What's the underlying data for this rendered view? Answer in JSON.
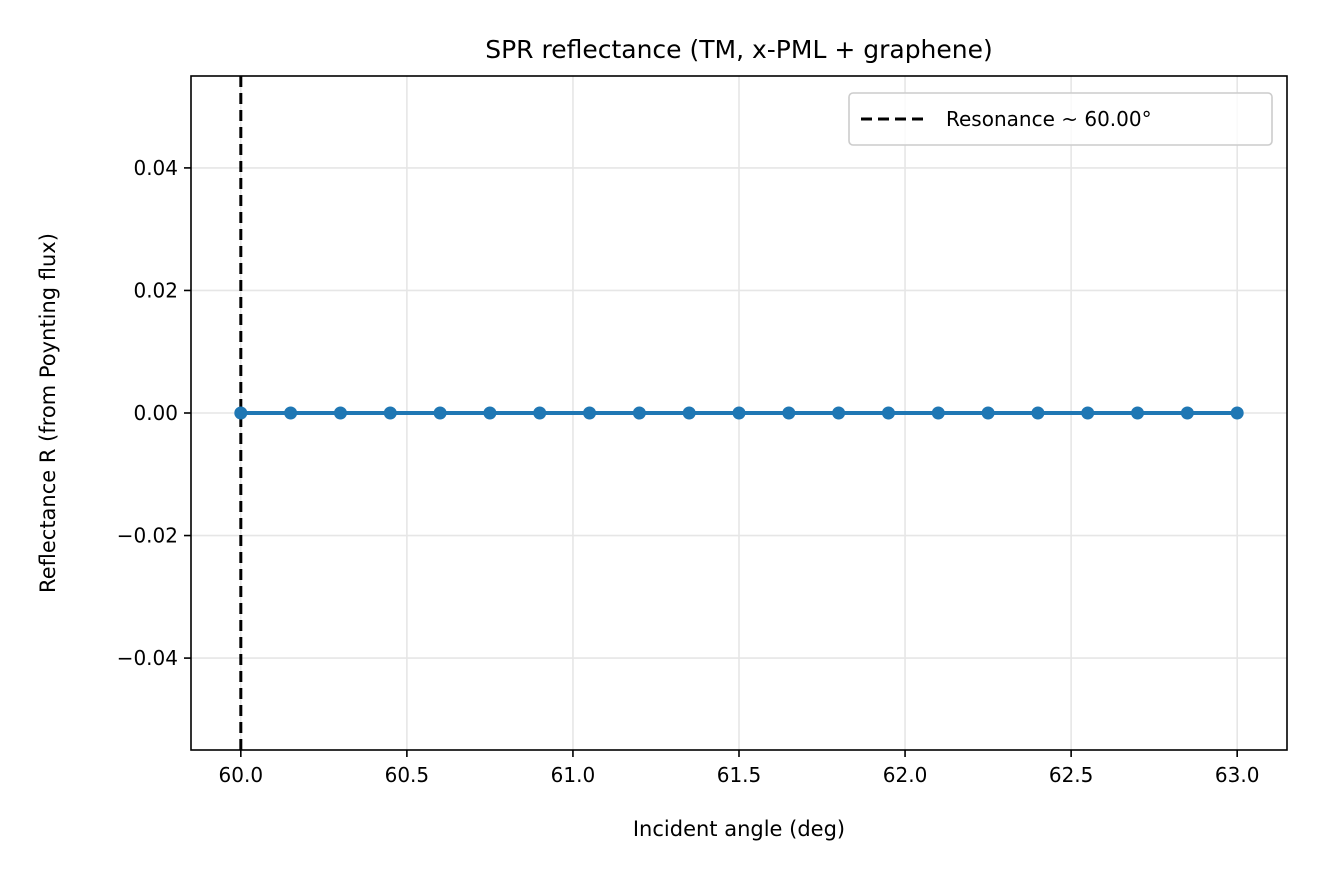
{
  "chart_data": {
    "type": "line",
    "title": "SPR reflectance (TM, x-PML + graphene)",
    "xlabel": "Incident angle (deg)",
    "ylabel": "Reflectance R (from Poynting flux)",
    "xlim": [
      59.85,
      63.15
    ],
    "ylim": [
      -0.055,
      0.055
    ],
    "xticks": [
      60.0,
      60.5,
      61.0,
      61.5,
      62.0,
      62.5,
      63.0
    ],
    "xtick_labels": [
      "60.0",
      "60.5",
      "61.0",
      "61.5",
      "62.0",
      "62.5",
      "63.0"
    ],
    "yticks": [
      -0.04,
      -0.02,
      0.0,
      0.02,
      0.04
    ],
    "ytick_labels": [
      "−0.04",
      "−0.02",
      "0.00",
      "0.02",
      "0.04"
    ],
    "grid": true,
    "legend_position": "top-right",
    "series": [
      {
        "color": "#1f77b4",
        "marker": "circle",
        "x": [
          60.0,
          60.15,
          60.3,
          60.45,
          60.6,
          60.75,
          60.9,
          61.05,
          61.2,
          61.35,
          61.5,
          61.65,
          61.8,
          61.95,
          62.1,
          62.25,
          62.4,
          62.55,
          62.7,
          62.85,
          63.0
        ],
        "y": [
          0,
          0,
          0,
          0,
          0,
          0,
          0,
          0,
          0,
          0,
          0,
          0,
          0,
          0,
          0,
          0,
          0,
          0,
          0,
          0,
          0
        ]
      }
    ],
    "annotations": [
      {
        "type": "vline",
        "x": 60.0,
        "style": "dashed",
        "color": "#000000",
        "label": "Resonance ~ 60.00°"
      }
    ]
  }
}
